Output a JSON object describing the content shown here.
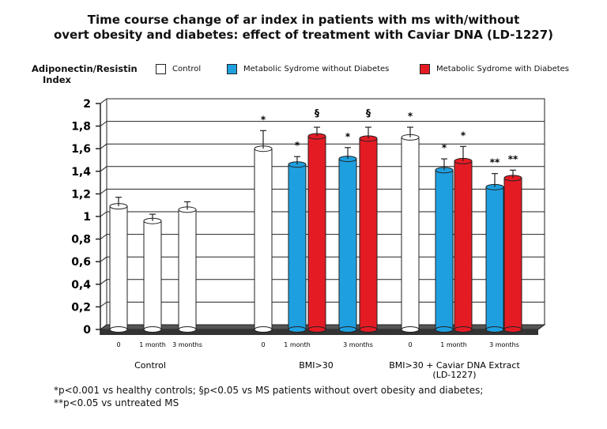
{
  "chart_data": {
    "type": "bar",
    "title_lines": [
      "Time course change of ar index in patients with ms with/without",
      "overt obesity and diabetes: effect of treatment with Caviar DNA (LD-1227)"
    ],
    "ylabel_lines": [
      "Adiponectin/Resistin",
      "Index"
    ],
    "ylim": [
      0,
      2
    ],
    "yticks": [
      "0",
      "0,2",
      "0,4",
      "0,6",
      "0,8",
      "1",
      "1,2",
      "1,4",
      "1,6",
      "1,8",
      "2"
    ],
    "grid": true,
    "legend_placement": "top",
    "series": [
      {
        "name": "Control",
        "color": "#ffffff"
      },
      {
        "name": "Metabolic Sydrome without Diabetes",
        "color": "#1ea0e0"
      },
      {
        "name": "Metabolic Sydrome with Diabetes",
        "color": "#e51b24"
      }
    ],
    "groups": [
      {
        "label_lines": [
          "Control"
        ],
        "subgroups": [
          {
            "label": "0",
            "bars": [
              {
                "series": 0,
                "value": 1.09,
                "error": 0.08,
                "sig": ""
              }
            ]
          },
          {
            "label": "1 month",
            "bars": [
              {
                "series": 0,
                "value": 0.96,
                "error": 0.06,
                "sig": ""
              }
            ]
          },
          {
            "label": "3 months",
            "bars": [
              {
                "series": 0,
                "value": 1.06,
                "error": 0.07,
                "sig": ""
              }
            ]
          }
        ]
      },
      {
        "label_lines": [
          "BMI>30"
        ],
        "subgroups": [
          {
            "label": "0",
            "bars": [
              {
                "series": 0,
                "value": 1.6,
                "error": 0.16,
                "sig": "*"
              }
            ]
          },
          {
            "label": "1 month",
            "bars": [
              {
                "series": 1,
                "value": 1.46,
                "error": 0.07,
                "sig": "*"
              },
              {
                "series": 2,
                "value": 1.71,
                "error": 0.08,
                "sig": "§"
              }
            ]
          },
          {
            "label": "3 months",
            "bars": [
              {
                "series": 1,
                "value": 1.51,
                "error": 0.1,
                "sig": "*"
              },
              {
                "series": 2,
                "value": 1.69,
                "error": 0.1,
                "sig": "§"
              }
            ]
          }
        ]
      },
      {
        "label_lines": [
          "BMI>30 + Caviar DNA Extract",
          "(LD-1227)"
        ],
        "subgroups": [
          {
            "label": "0",
            "bars": [
              {
                "series": 0,
                "value": 1.7,
                "error": 0.09,
                "sig": "*"
              }
            ]
          },
          {
            "label": "1 month",
            "bars": [
              {
                "series": 1,
                "value": 1.41,
                "error": 0.1,
                "sig": "*"
              },
              {
                "series": 2,
                "value": 1.49,
                "error": 0.13,
                "sig": "*"
              }
            ]
          },
          {
            "label": "3 months",
            "bars": [
              {
                "series": 1,
                "value": 1.26,
                "error": 0.12,
                "sig": "**"
              },
              {
                "series": 2,
                "value": 1.34,
                "error": 0.07,
                "sig": "**"
              }
            ]
          }
        ]
      }
    ],
    "footnote_lines": [
      "*p<0.001 vs healthy controls; §p<0.05 vs MS patients without overt obesity and diabetes;",
      "**p<0.05 vs untreated MS"
    ]
  }
}
